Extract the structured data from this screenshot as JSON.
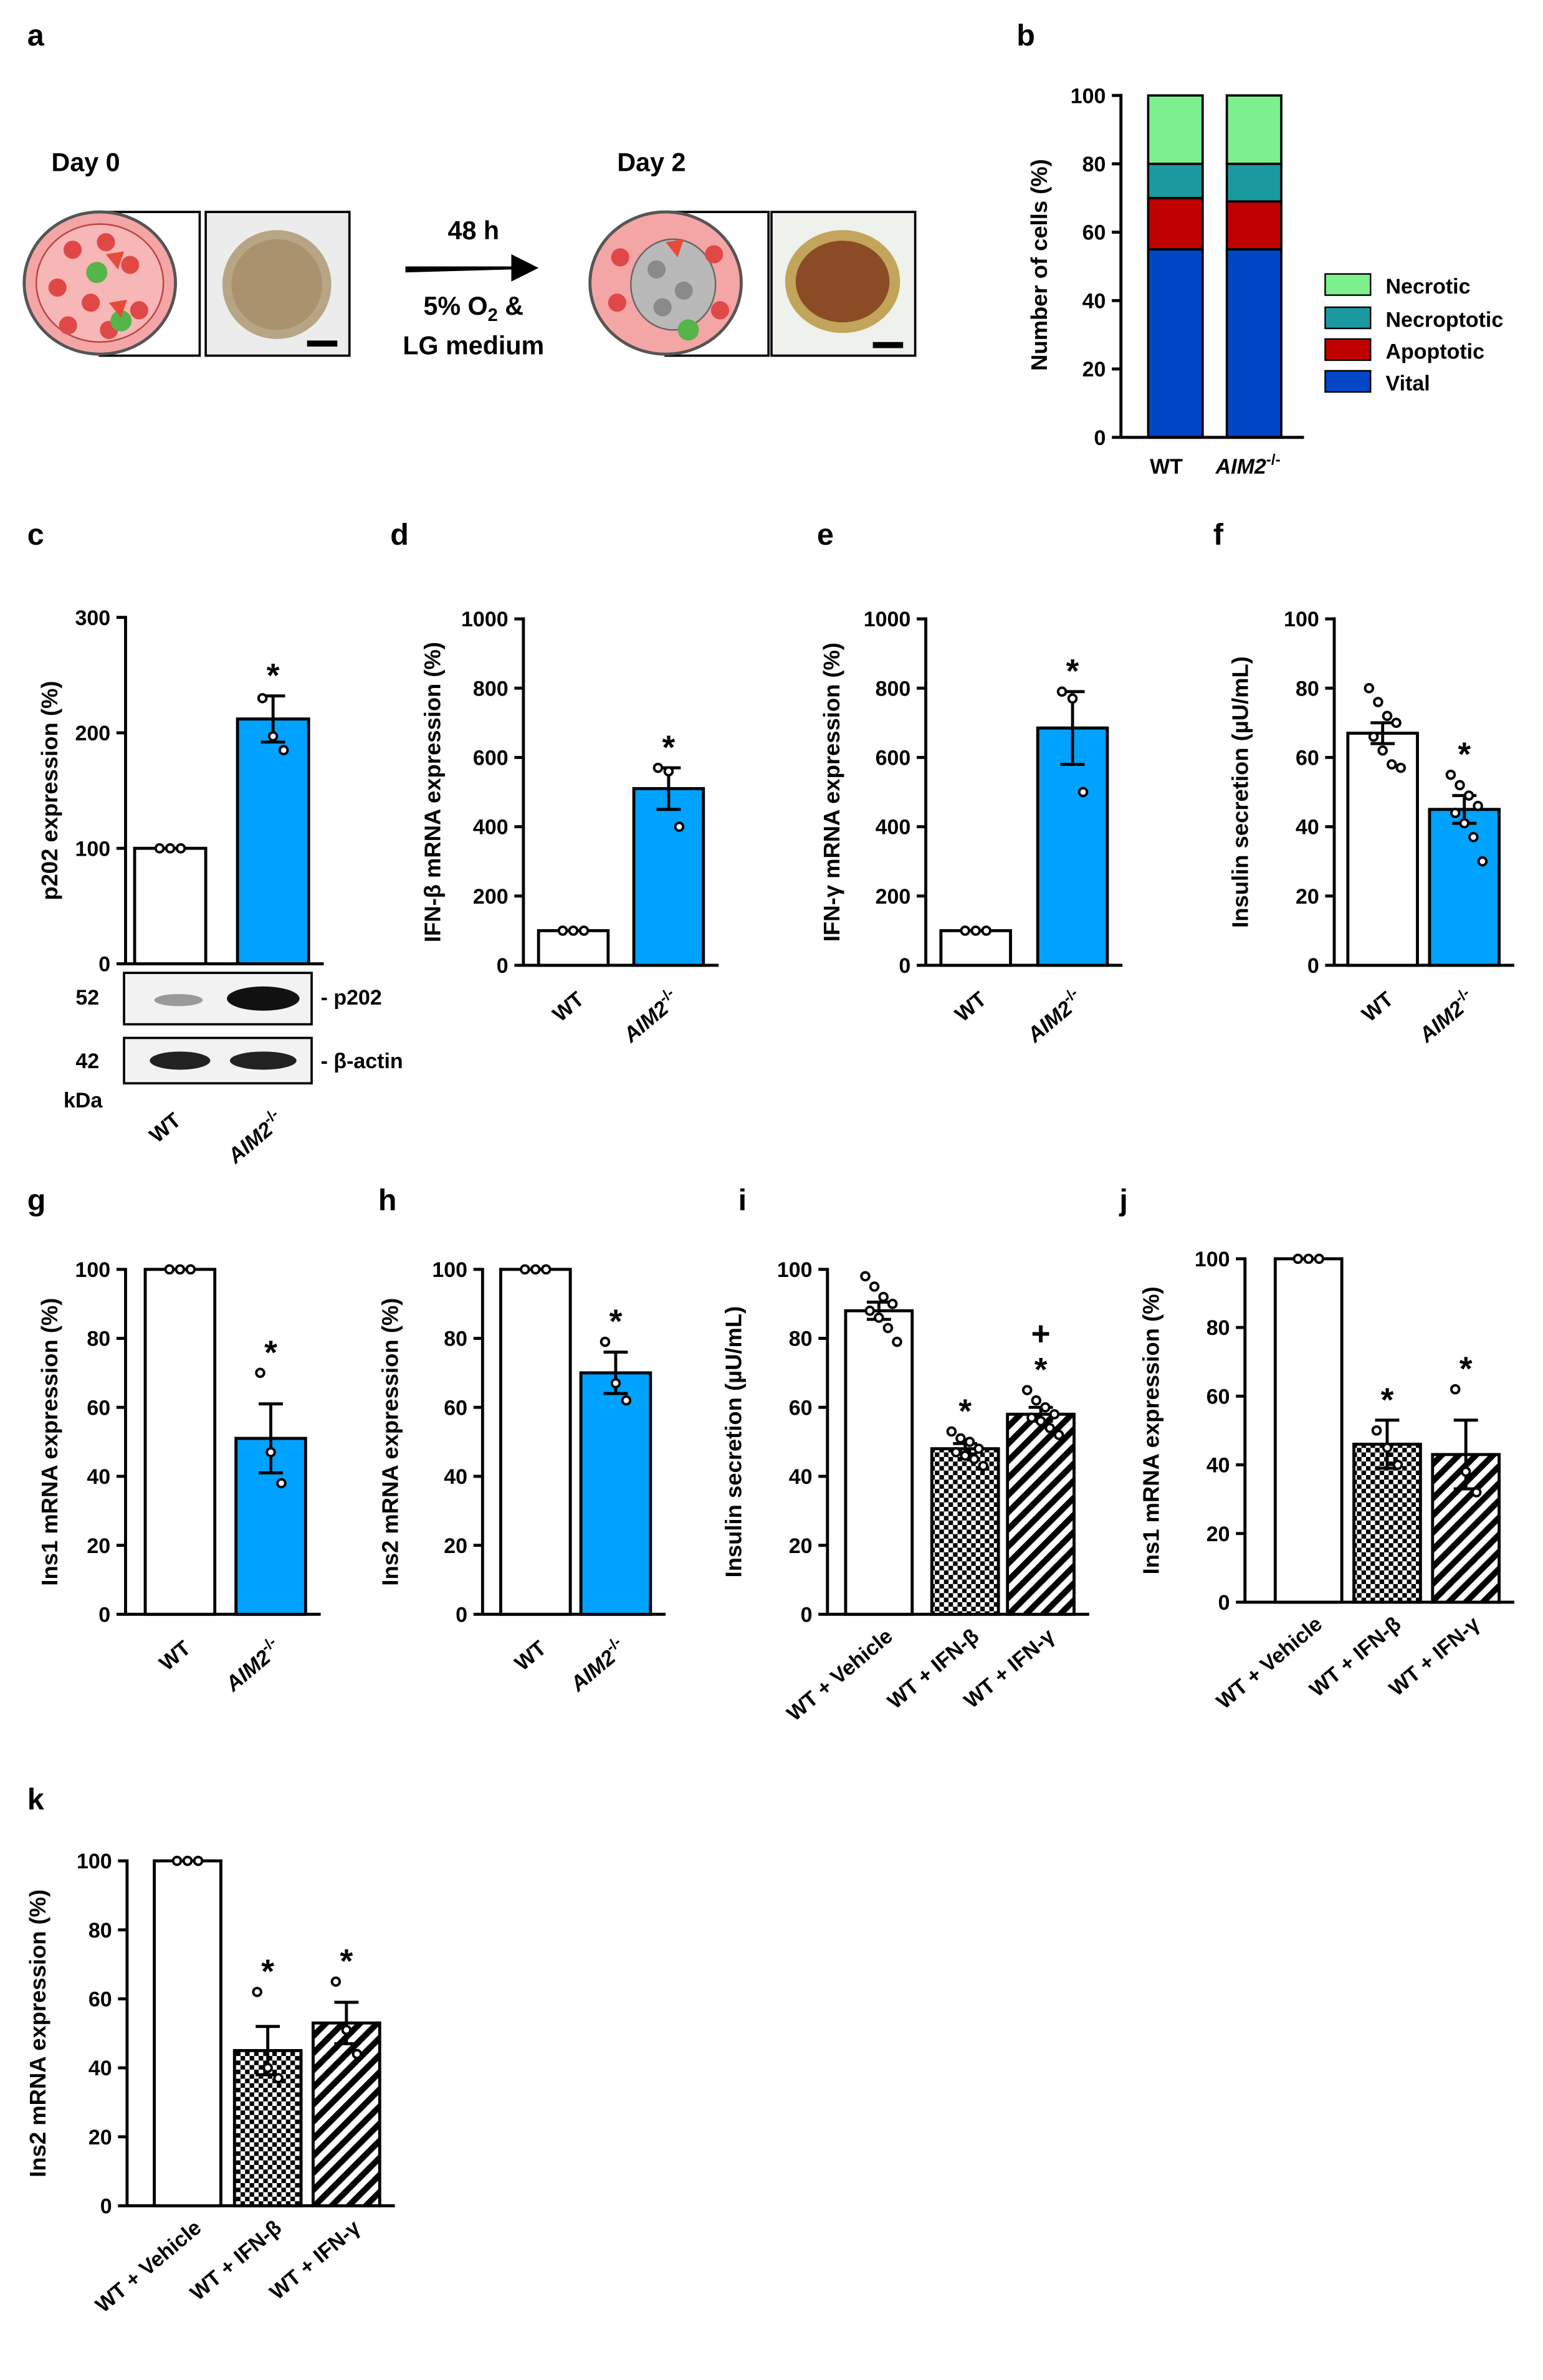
{
  "figure": {
    "panel_labels": [
      "a",
      "b",
      "c",
      "d",
      "e",
      "f",
      "g",
      "h",
      "i",
      "j",
      "k"
    ]
  },
  "panel_a": {
    "day0": "Day 0",
    "day2": "Day 2",
    "arrow_top": "48 h",
    "arrow_bottom_1": "5% O",
    "arrow_bottom_sub": "2",
    "arrow_bottom_amp": " &",
    "arrow_bottom_2": "LG medium"
  },
  "panel_c_blot": {
    "mw_52": "52",
    "mw_42": "42",
    "unit": "kDa",
    "band_p202": "- p202",
    "band_actin": "- β-actin"
  },
  "colors": {
    "vital": "#0047c8",
    "apoptotic": "#c00000",
    "necroptotic": "#1a9aa0",
    "necrotic": "#7cf08c",
    "aim2_bar": "#00a2ff"
  },
  "chart_data": [
    {
      "id": "b",
      "type": "bar",
      "stacked": true,
      "title": "",
      "ylabel": "Number of cells (%)",
      "ylim": [
        0,
        100
      ],
      "yticks": [
        "0",
        "20",
        "40",
        "60",
        "80",
        "100"
      ],
      "categories": [
        "WT",
        "AIM2-/-"
      ],
      "category_labels": {
        "wt": "WT",
        "aim2": "AIM2",
        "aim2_sup": "-/-"
      },
      "series": [
        {
          "name": "Vital",
          "values": [
            55,
            55
          ]
        },
        {
          "name": "Apoptotic",
          "values": [
            15,
            14
          ]
        },
        {
          "name": "Necroptotic",
          "values": [
            10,
            11
          ]
        },
        {
          "name": "Necrotic",
          "values": [
            20,
            20
          ]
        }
      ],
      "legend": [
        "Necrotic",
        "Necroptotic",
        "Apoptotic",
        "Vital"
      ],
      "legend_position": "right"
    },
    {
      "id": "c",
      "type": "bar",
      "ylabel": "p202 expression (%)",
      "ylim": [
        0,
        300
      ],
      "yticks": [
        "0",
        "100",
        "200",
        "300"
      ],
      "categories": [
        "WT",
        "AIM2-/-"
      ],
      "values": [
        100,
        212
      ],
      "sem": [
        0,
        20
      ],
      "points": [
        [
          100,
          100,
          100
        ],
        [
          230,
          197,
          185
        ]
      ],
      "significance": [
        "",
        "*"
      ]
    },
    {
      "id": "d",
      "type": "bar",
      "ylabel": "IFN-β mRNA expression (%)",
      "ylim": [
        0,
        1000
      ],
      "yticks": [
        "0",
        "200",
        "400",
        "600",
        "800",
        "1000"
      ],
      "categories": [
        "WT",
        "AIM2-/-"
      ],
      "values": [
        100,
        510
      ],
      "sem": [
        0,
        60
      ],
      "points": [
        [
          100,
          100,
          100
        ],
        [
          570,
          560,
          400
        ]
      ],
      "significance": [
        "",
        "*"
      ]
    },
    {
      "id": "e",
      "type": "bar",
      "ylabel": "IFN-γ mRNA expression (%)",
      "ylim": [
        0,
        1000
      ],
      "yticks": [
        "0",
        "200",
        "400",
        "600",
        "800",
        "1000"
      ],
      "categories": [
        "WT",
        "AIM2-/-"
      ],
      "values": [
        100,
        685
      ],
      "sem": [
        0,
        105
      ],
      "points": [
        [
          100,
          100,
          100
        ],
        [
          790,
          770,
          500
        ]
      ],
      "significance": [
        "",
        "*"
      ]
    },
    {
      "id": "f",
      "type": "bar",
      "ylabel": "Insulin secretion (µU/mL)",
      "ylim": [
        0,
        100
      ],
      "yticks": [
        "0",
        "20",
        "40",
        "60",
        "80",
        "100"
      ],
      "categories": [
        "WT",
        "AIM2-/-"
      ],
      "values": [
        67,
        45
      ],
      "sem": [
        3,
        4
      ],
      "points": [
        [
          80,
          76,
          72,
          70,
          66,
          62,
          58,
          57
        ],
        [
          55,
          52,
          49,
          46,
          44,
          41,
          37,
          30
        ]
      ],
      "significance": [
        "",
        "*"
      ]
    },
    {
      "id": "g",
      "type": "bar",
      "ylabel": "Ins1 mRNA expression (%)",
      "ylim": [
        0,
        100
      ],
      "yticks": [
        "0",
        "20",
        "40",
        "60",
        "80",
        "100"
      ],
      "categories": [
        "WT",
        "AIM2-/-"
      ],
      "values": [
        100,
        51
      ],
      "sem": [
        0,
        10
      ],
      "points": [
        [
          100,
          100,
          100
        ],
        [
          70,
          47,
          38
        ]
      ],
      "significance": [
        "",
        "*"
      ]
    },
    {
      "id": "h",
      "type": "bar",
      "ylabel": "Ins2 mRNA expression (%)",
      "ylim": [
        0,
        100
      ],
      "yticks": [
        "0",
        "20",
        "40",
        "60",
        "80",
        "100"
      ],
      "categories": [
        "WT",
        "AIM2-/-"
      ],
      "values": [
        100,
        70
      ],
      "sem": [
        0,
        6
      ],
      "points": [
        [
          100,
          100,
          100
        ],
        [
          79,
          67,
          62
        ]
      ],
      "significance": [
        "",
        "*"
      ]
    },
    {
      "id": "i",
      "type": "bar",
      "ylabel": "Insulin secretion (µU/mL)",
      "ylim": [
        0,
        100
      ],
      "yticks": [
        "0",
        "20",
        "40",
        "60",
        "80",
        "100"
      ],
      "categories": [
        "WT + Vehicle",
        "WT + IFN-β",
        "WT + IFN-γ"
      ],
      "values": [
        88,
        48,
        58
      ],
      "sem": [
        2.5,
        1.5,
        2
      ],
      "points": [
        [
          98,
          95,
          92,
          90,
          88,
          86,
          83,
          79
        ],
        [
          53,
          51,
          50,
          48,
          47,
          46,
          45,
          43
        ],
        [
          65,
          62,
          60,
          58,
          57,
          56,
          54,
          52
        ]
      ],
      "significance": [
        "",
        "*",
        "+\n*"
      ]
    },
    {
      "id": "j",
      "type": "bar",
      "ylabel": "Ins1 mRNA expression (%)",
      "ylim": [
        0,
        100
      ],
      "yticks": [
        "0",
        "20",
        "40",
        "60",
        "80",
        "100"
      ],
      "categories": [
        "WT + Vehicle",
        "WT + IFN-β",
        "WT + IFN-γ"
      ],
      "values": [
        100,
        46,
        43
      ],
      "sem": [
        0,
        7,
        10
      ],
      "points": [
        [
          100,
          100,
          100
        ],
        [
          50,
          45,
          40
        ],
        [
          62,
          38,
          32
        ]
      ],
      "significance": [
        "",
        "*",
        "*"
      ]
    },
    {
      "id": "k",
      "type": "bar",
      "ylabel": "Ins2 mRNA expression (%)",
      "ylim": [
        0,
        100
      ],
      "yticks": [
        "0",
        "20",
        "40",
        "60",
        "80",
        "100"
      ],
      "categories": [
        "WT + Vehicle",
        "WT + IFN-β",
        "WT + IFN-γ"
      ],
      "values": [
        100,
        45,
        53
      ],
      "sem": [
        0,
        7,
        6
      ],
      "points": [
        [
          100,
          100,
          100
        ],
        [
          62,
          40,
          37
        ],
        [
          65,
          51,
          44
        ]
      ],
      "significance": [
        "",
        "*",
        "*"
      ]
    }
  ]
}
